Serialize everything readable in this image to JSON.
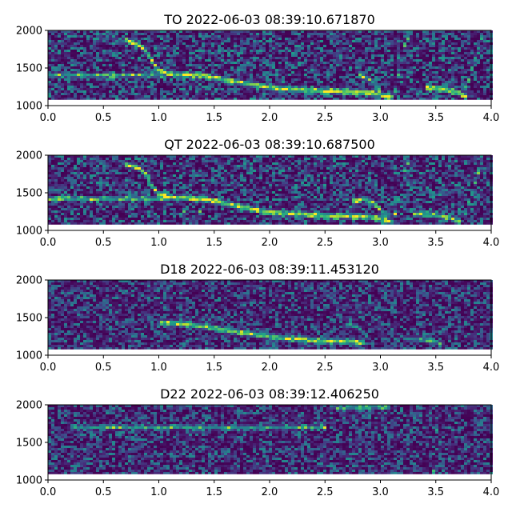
{
  "chart_data": [
    {
      "type": "heatmap",
      "title": "TO 2022-06-03 08:39:10.671870",
      "xlim": [
        0.0,
        4.0
      ],
      "ylim": [
        1000,
        2000
      ],
      "xticks": [
        "0.0",
        "0.5",
        "1.0",
        "1.5",
        "2.0",
        "2.5",
        "3.0",
        "3.5",
        "4.0"
      ],
      "yticks": [
        "1000",
        "1500",
        "2000"
      ],
      "colormap": "viridis",
      "noise_level": 0.34,
      "flat_tone": {
        "freq": 1400,
        "x": [
          0.0,
          1.05
        ],
        "intensity": 0.55
      },
      "ridges": [
        {
          "x": [
            0.68,
            0.82,
            0.9,
            0.95,
            1.0,
            1.1,
            1.4,
            1.6,
            1.8,
            2.0,
            2.3,
            2.6,
            2.9,
            3.05,
            3.12
          ],
          "y": [
            1880,
            1810,
            1700,
            1560,
            1470,
            1420,
            1400,
            1340,
            1290,
            1240,
            1210,
            1190,
            1170,
            1130,
            1110
          ],
          "intensity": 0.9
        },
        {
          "x": [
            3.4,
            3.55,
            3.68,
            3.78
          ],
          "y": [
            1240,
            1220,
            1180,
            1120
          ],
          "intensity": 0.85
        },
        {
          "x": [
            3.12,
            3.17,
            3.22,
            3.27
          ],
          "y": [
            1130,
            1450,
            1800,
            1960
          ],
          "intensity": 0.55
        },
        {
          "x": [
            3.75,
            3.82,
            3.89,
            3.93
          ],
          "y": [
            1130,
            1450,
            1800,
            1960
          ],
          "intensity": 0.5
        },
        {
          "x": [
            2.8,
            2.9,
            3.0
          ],
          "y": [
            1400,
            1350,
            1200
          ],
          "intensity": 0.6
        }
      ]
    },
    {
      "type": "heatmap",
      "title": "QT 2022-06-03 08:39:10.687500",
      "xlim": [
        0.0,
        4.0
      ],
      "ylim": [
        1000,
        2000
      ],
      "xticks": [
        "0.0",
        "0.5",
        "1.0",
        "1.5",
        "2.0",
        "2.5",
        "3.0",
        "3.5",
        "4.0"
      ],
      "yticks": [
        "1000",
        "1500",
        "2000"
      ],
      "colormap": "viridis",
      "noise_level": 0.34,
      "flat_tone": {
        "freq": 1420,
        "x": [
          0.0,
          1.1
        ],
        "intensity": 0.6
      },
      "ridges": [
        {
          "x": [
            0.7,
            0.82,
            0.9,
            0.95,
            1.0,
            1.1,
            1.4,
            1.6,
            1.8,
            2.0,
            2.3,
            2.6,
            2.9,
            3.05,
            3.12
          ],
          "y": [
            1880,
            1830,
            1720,
            1560,
            1480,
            1440,
            1420,
            1360,
            1300,
            1240,
            1210,
            1190,
            1180,
            1130,
            1110
          ],
          "intensity": 0.9
        },
        {
          "x": [
            2.75,
            2.85,
            2.95,
            3.05
          ],
          "y": [
            1380,
            1420,
            1350,
            1200
          ],
          "intensity": 0.75
        },
        {
          "x": [
            3.3,
            3.5,
            3.62,
            3.72
          ],
          "y": [
            1220,
            1200,
            1170,
            1110
          ],
          "intensity": 0.7
        },
        {
          "x": [
            3.12,
            3.17,
            3.22,
            3.27
          ],
          "y": [
            1130,
            1450,
            1800,
            1960
          ],
          "intensity": 0.55
        },
        {
          "x": [
            3.75,
            3.82,
            3.89,
            3.93
          ],
          "y": [
            1130,
            1450,
            1800,
            1960
          ],
          "intensity": 0.5
        },
        {
          "x": [
            1.2,
            1.25
          ],
          "y": [
            1180,
            1350
          ],
          "intensity": 0.55
        },
        {
          "x": [
            1.35,
            1.42
          ],
          "y": [
            1200,
            1360
          ],
          "intensity": 0.5
        }
      ]
    },
    {
      "type": "heatmap",
      "title": "D18 2022-06-03 08:39:11.453120",
      "xlim": [
        0.0,
        4.0
      ],
      "ylim": [
        1000,
        2000
      ],
      "xticks": [
        "0.0",
        "0.5",
        "1.0",
        "1.5",
        "2.0",
        "2.5",
        "3.0",
        "3.5",
        "4.0"
      ],
      "yticks": [
        "1000",
        "1500",
        "2000"
      ],
      "colormap": "viridis",
      "noise_level": 0.3,
      "flat_tone": null,
      "ridges": [
        {
          "x": [
            1.0,
            1.2,
            1.5,
            1.8,
            2.1,
            2.4,
            2.7,
            2.85
          ],
          "y": [
            1440,
            1420,
            1360,
            1290,
            1230,
            1200,
            1180,
            1170
          ],
          "intensity": 0.85
        },
        {
          "x": [
            2.7,
            2.8,
            2.9
          ],
          "y": [
            1400,
            1380,
            1200
          ],
          "intensity": 0.55
        },
        {
          "x": [
            3.2,
            3.4,
            3.55
          ],
          "y": [
            1220,
            1200,
            1150
          ],
          "intensity": 0.45
        }
      ]
    },
    {
      "type": "heatmap",
      "title": "D22 2022-06-03 08:39:12.406250",
      "xlim": [
        0.0,
        4.0
      ],
      "ylim": [
        1000,
        2000
      ],
      "xticks": [
        "0.0",
        "0.5",
        "1.0",
        "1.5",
        "2.0",
        "2.5",
        "3.0",
        "3.5",
        "4.0"
      ],
      "yticks": [
        "1000",
        "1500",
        "2000"
      ],
      "colormap": "viridis",
      "noise_level": 0.3,
      "flat_tone": {
        "freq": 1700,
        "x": [
          0.2,
          2.5
        ],
        "intensity": 0.5
      },
      "ridges": [
        {
          "x": [
            3.48,
            3.5,
            3.52
          ],
          "y": [
            1100,
            1500,
            1900
          ],
          "intensity": 0.45
        },
        {
          "x": [
            2.6,
            2.9,
            3.1
          ],
          "y": [
            1950,
            1980,
            1960
          ],
          "intensity": 0.5
        }
      ]
    }
  ]
}
